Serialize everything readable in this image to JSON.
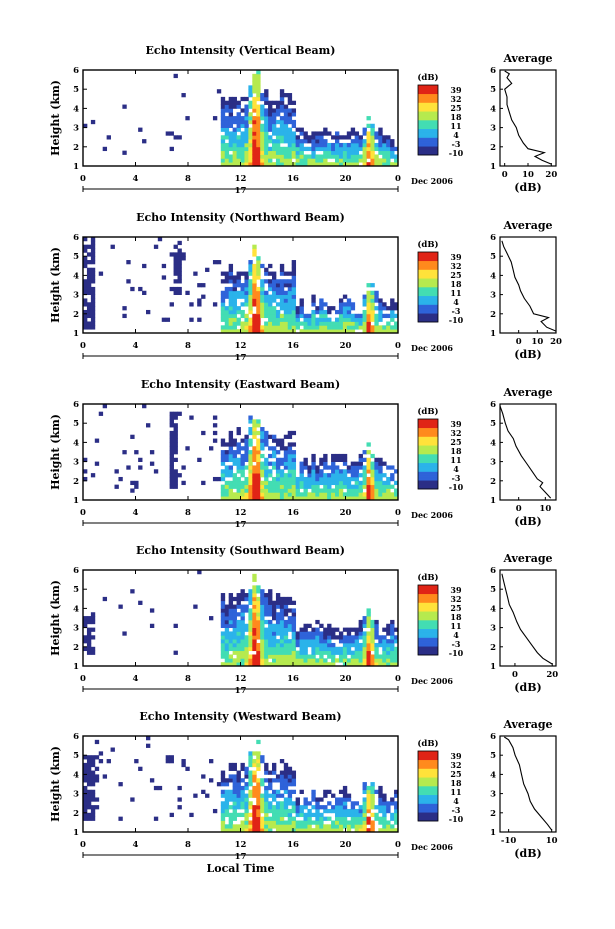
{
  "figure": {
    "xlabel": "Local Time",
    "ylabel": "Height (km)",
    "date_label": "Dec 2006",
    "day_label": "17",
    "average_title": "Average",
    "average_xlabel": "(dB)",
    "colorbar_label": "(dB)"
  },
  "chart_data": [
    {
      "type": "heatmap",
      "title": "Echo Intensity (Vertical Beam)",
      "xlabel": "",
      "ylabel": "Height (km)",
      "x_ticks": [
        "0",
        "4",
        "8",
        "12",
        "16",
        "20",
        "0"
      ],
      "xlim": [
        0,
        24
      ],
      "ylim": [
        1,
        6
      ],
      "y_ticks": [
        "1",
        "2",
        "3",
        "4",
        "5",
        "6"
      ],
      "colorbar": {
        "unit": "(dB)",
        "ticks": [
          "39",
          "32",
          "25",
          "18",
          "11",
          "4",
          "-3",
          "-10"
        ],
        "colors": [
          "#2b2e86",
          "#2f63d9",
          "#2bb3ea",
          "#43ddb3",
          "#b6ea4f",
          "#ffe23a",
          "#ff8a1d",
          "#e02416"
        ]
      },
      "average": {
        "title": "Average",
        "xlabel": "(dB)",
        "x_ticks": [
          "0",
          "10",
          "20"
        ],
        "xlim": [
          -2,
          22
        ],
        "profile": [
          [
            20,
            1.1
          ],
          [
            16,
            1.3
          ],
          [
            13,
            1.5
          ],
          [
            17,
            1.7
          ],
          [
            10,
            1.9
          ],
          [
            8,
            2.2
          ],
          [
            6,
            2.6
          ],
          [
            5,
            3.0
          ],
          [
            3,
            3.4
          ],
          [
            2,
            3.8
          ],
          [
            1,
            4.2
          ],
          [
            1,
            4.6
          ],
          [
            0,
            5.0
          ],
          [
            3,
            5.3
          ],
          [
            1,
            5.6
          ],
          [
            2,
            5.8
          ],
          [
            0,
            5.95
          ]
        ]
      },
      "profile": {
        "max_h": 4.6,
        "after_h": 2.6,
        "spike1": 13,
        "spike2": 21.7,
        "noise": 0.2,
        "scat": 0.03,
        "pre": [
          [
            0.3,
            1.7,
            0,
            2
          ],
          [
            0.3,
            2.3,
            0,
            2
          ]
        ]
      }
    },
    {
      "type": "heatmap",
      "title": "Echo Intensity (Northward Beam)",
      "xlabel": "",
      "ylabel": "Height (km)",
      "x_ticks": [
        "0",
        "4",
        "8",
        "12",
        "16",
        "20",
        "0"
      ],
      "xlim": [
        0,
        24
      ],
      "ylim": [
        1,
        6
      ],
      "y_ticks": [
        "1",
        "2",
        "3",
        "4",
        "5",
        "6"
      ],
      "colorbar": {
        "unit": "(dB)",
        "ticks": [
          "39",
          "32",
          "25",
          "18",
          "11",
          "4",
          "-3",
          "-10"
        ],
        "colors": [
          "#2b2e86",
          "#2f63d9",
          "#2bb3ea",
          "#43ddb3",
          "#b6ea4f",
          "#ffe23a",
          "#ff8a1d",
          "#e02416"
        ]
      },
      "average": {
        "title": "Average",
        "xlabel": "(dB)",
        "x_ticks": [
          "0",
          "10",
          "20"
        ],
        "xlim": [
          -10,
          20
        ],
        "profile": [
          [
            20,
            1.1
          ],
          [
            15,
            1.3
          ],
          [
            12,
            1.6
          ],
          [
            16,
            1.8
          ],
          [
            8,
            2.0
          ],
          [
            6,
            2.4
          ],
          [
            3,
            2.8
          ],
          [
            1,
            3.2
          ],
          [
            0,
            3.5
          ],
          [
            -2,
            3.9
          ],
          [
            -3,
            4.3
          ],
          [
            -4,
            4.7
          ],
          [
            -6,
            5.1
          ],
          [
            -8,
            5.5
          ],
          [
            -9,
            5.8
          ]
        ]
      },
      "profile": {
        "max_h": 4.3,
        "after_h": 2.6,
        "spike1": 13,
        "spike2": 21.7,
        "noise": 0.3,
        "scat": 0.05,
        "pre": [
          [
            0.3,
            1.1,
            5.6,
            2
          ],
          [
            7.1,
            3.0,
            5.6,
            2
          ]
        ]
      }
    },
    {
      "type": "heatmap",
      "title": "Echo Intensity (Eastward Beam)",
      "xlabel": "",
      "ylabel": "Height (km)",
      "x_ticks": [
        "0",
        "4",
        "8",
        "12",
        "16",
        "20",
        "0"
      ],
      "xlim": [
        0,
        24
      ],
      "ylim": [
        1,
        6
      ],
      "y_ticks": [
        "1",
        "2",
        "3",
        "4",
        "5",
        "6"
      ],
      "colorbar": {
        "unit": "(dB)",
        "ticks": [
          "39",
          "32",
          "25",
          "18",
          "11",
          "4",
          "-3",
          "-10"
        ],
        "colors": [
          "#2b2e86",
          "#2f63d9",
          "#2bb3ea",
          "#43ddb3",
          "#b6ea4f",
          "#ffe23a",
          "#ff8a1d",
          "#e02416"
        ]
      },
      "average": {
        "title": "Average",
        "xlabel": "(dB)",
        "x_ticks": [
          "0",
          "10"
        ],
        "xlim": [
          -7,
          14
        ],
        "profile": [
          [
            12,
            1.1
          ],
          [
            10,
            1.4
          ],
          [
            8,
            1.7
          ],
          [
            9,
            1.9
          ],
          [
            7,
            2.1
          ],
          [
            5,
            2.5
          ],
          [
            3,
            2.9
          ],
          [
            1,
            3.3
          ],
          [
            -1,
            3.8
          ],
          [
            -2,
            4.2
          ],
          [
            -4,
            4.6
          ],
          [
            -5,
            5.0
          ],
          [
            -6,
            5.5
          ],
          [
            -7,
            5.9
          ]
        ]
      },
      "profile": {
        "max_h": 4.4,
        "after_h": 3.0,
        "spike1": 13,
        "spike2": 21.7,
        "noise": 0.3,
        "scat": 0.05,
        "pre": [
          [
            6.8,
            1.3,
            5.6,
            3
          ],
          [
            3.8,
            1.3,
            1.8,
            2
          ],
          [
            0.3,
            2.9,
            0.8,
            2
          ]
        ]
      }
    },
    {
      "type": "heatmap",
      "title": "Echo Intensity (Southward Beam)",
      "xlabel": "",
      "ylabel": "Height (km)",
      "x_ticks": [
        "0",
        "4",
        "8",
        "12",
        "16",
        "20",
        "0"
      ],
      "xlim": [
        0,
        24
      ],
      "ylim": [
        1,
        6
      ],
      "y_ticks": [
        "1",
        "2",
        "3",
        "4",
        "5",
        "6"
      ],
      "colorbar": {
        "unit": "(dB)",
        "ticks": [
          "39",
          "32",
          "25",
          "18",
          "11",
          "4",
          "-3",
          "-10"
        ],
        "colors": [
          "#2b2e86",
          "#2f63d9",
          "#2bb3ea",
          "#43ddb3",
          "#b6ea4f",
          "#ffe23a",
          "#ff8a1d",
          "#e02416"
        ]
      },
      "average": {
        "title": "Average",
        "xlabel": "(dB)",
        "x_ticks": [
          "0",
          "20"
        ],
        "xlim": [
          -8,
          22
        ],
        "profile": [
          [
            20,
            1.1
          ],
          [
            15,
            1.4
          ],
          [
            12,
            1.7
          ],
          [
            9,
            2.1
          ],
          [
            6,
            2.5
          ],
          [
            3,
            2.9
          ],
          [
            1,
            3.3
          ],
          [
            -1,
            3.8
          ],
          [
            -3,
            4.2
          ],
          [
            -4,
            4.6
          ],
          [
            -5,
            5.0
          ],
          [
            -6,
            5.4
          ],
          [
            -7,
            5.8
          ]
        ]
      },
      "profile": {
        "max_h": 4.5,
        "after_h": 3.0,
        "spike1": 13,
        "spike2": 21.7,
        "noise": 0.2,
        "scat": 0.03,
        "pre": [
          [
            0.3,
            1.5,
            3.8,
            2
          ]
        ]
      }
    },
    {
      "type": "heatmap",
      "title": "Echo Intensity (Westward Beam)",
      "xlabel": "Local Time",
      "ylabel": "Height (km)",
      "x_ticks": [
        "0",
        "4",
        "8",
        "12",
        "16",
        "20",
        "0"
      ],
      "xlim": [
        0,
        24
      ],
      "ylim": [
        1,
        6
      ],
      "y_ticks": [
        "1",
        "2",
        "3",
        "4",
        "5",
        "6"
      ],
      "colorbar": {
        "unit": "(dB)",
        "ticks": [
          "39",
          "32",
          "25",
          "18",
          "11",
          "4",
          "-3",
          "-10"
        ],
        "colors": [
          "#2b2e86",
          "#2f63d9",
          "#2bb3ea",
          "#43ddb3",
          "#b6ea4f",
          "#ffe23a",
          "#ff8a1d",
          "#e02416"
        ]
      },
      "average": {
        "title": "Average",
        "xlabel": "(dB)",
        "x_ticks": [
          "-10",
          "10"
        ],
        "xlim": [
          -14,
          12
        ],
        "profile": [
          [
            10,
            1.1
          ],
          [
            8,
            1.4
          ],
          [
            5,
            1.8
          ],
          [
            2,
            2.2
          ],
          [
            0,
            2.6
          ],
          [
            -1,
            3.0
          ],
          [
            -3,
            3.5
          ],
          [
            -4,
            4.0
          ],
          [
            -5,
            4.5
          ],
          [
            -7,
            5.0
          ],
          [
            -8,
            5.4
          ],
          [
            -10,
            5.8
          ],
          [
            -12,
            5.95
          ]
        ]
      },
      "profile": {
        "max_h": 4.4,
        "after_h": 3.0,
        "spike1": 13,
        "spike2": 21.7,
        "noise": 0.4,
        "scat": 0.05,
        "pre": [
          [
            0.3,
            1.5,
            5.0,
            2
          ],
          [
            6.5,
            4.5,
            5.0,
            2
          ]
        ]
      }
    }
  ]
}
